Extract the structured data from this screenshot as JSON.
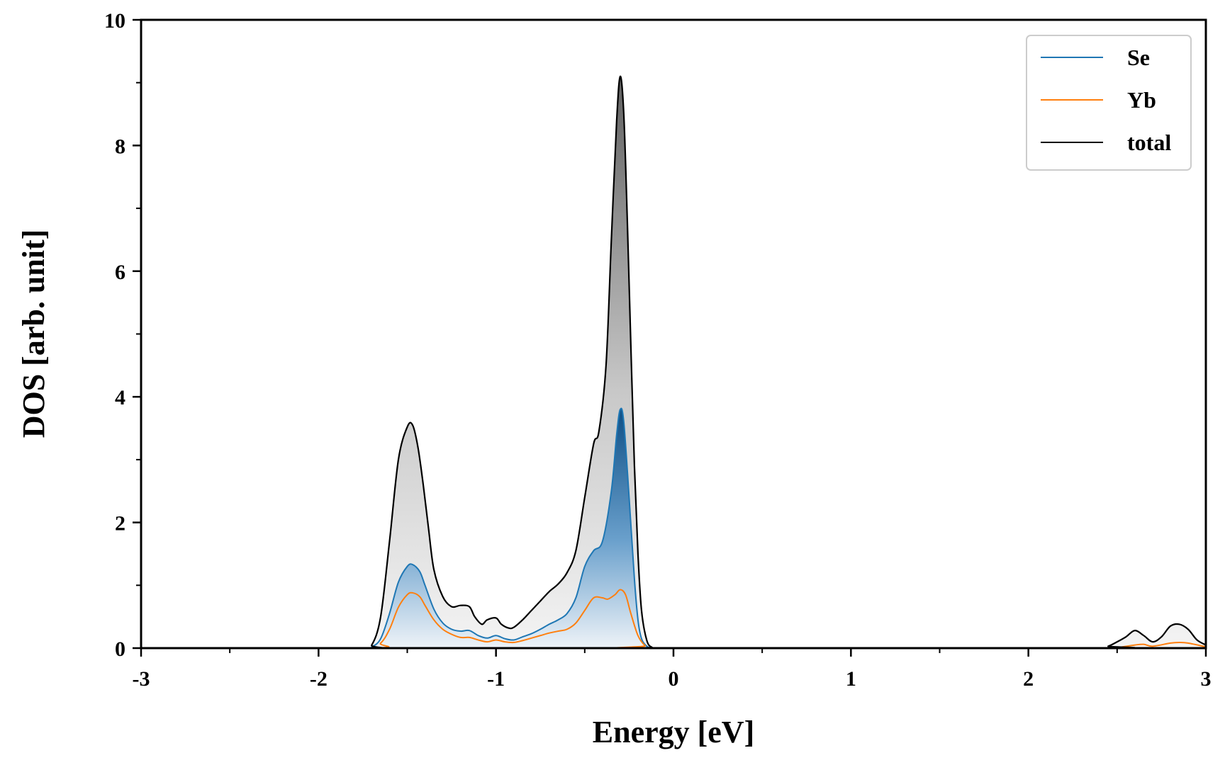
{
  "chart_data": {
    "type": "area",
    "xlabel": "Energy [eV]",
    "ylabel": "DOS [arb. unit]",
    "xlim": [
      -3,
      3
    ],
    "ylim": [
      0,
      10
    ],
    "x_ticks": [
      -3,
      -2,
      -1,
      0,
      1,
      2,
      3
    ],
    "x_tick_labels": [
      "-3",
      "-2",
      "-1",
      "0",
      "1",
      "2",
      "3"
    ],
    "y_ticks": [
      0,
      2,
      4,
      6,
      8,
      10
    ],
    "y_tick_labels": [
      "0",
      "2",
      "4",
      "6",
      "8",
      "10"
    ],
    "grid": false,
    "legend_position": "top-right",
    "series": [
      {
        "name": "Se",
        "color": "#1f77b4",
        "fill": "blue-gradient",
        "x": [
          -3.0,
          -1.75,
          -1.7,
          -1.65,
          -1.6,
          -1.55,
          -1.5,
          -1.47,
          -1.43,
          -1.4,
          -1.35,
          -1.3,
          -1.25,
          -1.2,
          -1.15,
          -1.1,
          -1.05,
          -1.0,
          -0.95,
          -0.9,
          -0.85,
          -0.8,
          -0.75,
          -0.7,
          -0.65,
          -0.6,
          -0.55,
          -0.5,
          -0.45,
          -0.4,
          -0.35,
          -0.32,
          -0.3,
          -0.28,
          -0.25,
          -0.22,
          -0.2,
          -0.18,
          -0.15,
          -0.12,
          -0.1,
          3.0
        ],
        "y": [
          0.0,
          0.0,
          0.02,
          0.15,
          0.55,
          1.05,
          1.3,
          1.33,
          1.22,
          1.0,
          0.62,
          0.4,
          0.3,
          0.27,
          0.28,
          0.2,
          0.16,
          0.2,
          0.15,
          0.13,
          0.18,
          0.23,
          0.3,
          0.38,
          0.45,
          0.55,
          0.8,
          1.3,
          1.55,
          1.7,
          2.5,
          3.4,
          3.8,
          3.6,
          2.4,
          1.1,
          0.45,
          0.15,
          0.03,
          0.0,
          0.0,
          0.0
        ]
      },
      {
        "name": "Yb",
        "color": "#ff7f0e",
        "x": [
          -3.0,
          -1.72,
          -1.65,
          -1.6,
          -1.55,
          -1.5,
          -1.47,
          -1.43,
          -1.4,
          -1.35,
          -1.3,
          -1.25,
          -1.2,
          -1.15,
          -1.1,
          -1.05,
          -1.0,
          -0.95,
          -0.9,
          -0.85,
          -0.8,
          -0.75,
          -0.7,
          -0.65,
          -0.6,
          -0.55,
          -0.5,
          -0.45,
          -0.4,
          -0.37,
          -0.33,
          -0.3,
          -0.27,
          -0.24,
          -0.2,
          -0.16,
          -0.12,
          2.4,
          2.5,
          2.6,
          2.65,
          2.7,
          2.8,
          2.85,
          2.9,
          3.0
        ],
        "y": [
          0.0,
          0.0,
          0.08,
          0.3,
          0.65,
          0.85,
          0.88,
          0.82,
          0.68,
          0.45,
          0.3,
          0.22,
          0.17,
          0.17,
          0.13,
          0.1,
          0.13,
          0.1,
          0.09,
          0.12,
          0.16,
          0.2,
          0.24,
          0.27,
          0.3,
          0.4,
          0.6,
          0.8,
          0.8,
          0.78,
          0.85,
          0.93,
          0.85,
          0.55,
          0.2,
          0.04,
          0.0,
          0.0,
          0.01,
          0.05,
          0.06,
          0.03,
          0.08,
          0.09,
          0.08,
          0.02
        ]
      },
      {
        "name": "total",
        "color": "#000000",
        "fill": "gray-gradient",
        "x": [
          -3.0,
          -1.75,
          -1.7,
          -1.65,
          -1.6,
          -1.55,
          -1.5,
          -1.47,
          -1.44,
          -1.41,
          -1.38,
          -1.35,
          -1.3,
          -1.25,
          -1.2,
          -1.15,
          -1.12,
          -1.08,
          -1.05,
          -1.0,
          -0.97,
          -0.93,
          -0.9,
          -0.85,
          -0.8,
          -0.75,
          -0.7,
          -0.65,
          -0.6,
          -0.55,
          -0.5,
          -0.45,
          -0.42,
          -0.38,
          -0.35,
          -0.32,
          -0.3,
          -0.28,
          -0.26,
          -0.24,
          -0.22,
          -0.2,
          -0.18,
          -0.15,
          -0.12,
          -0.1,
          2.4,
          2.45,
          2.5,
          2.55,
          2.6,
          2.65,
          2.7,
          2.75,
          2.8,
          2.85,
          2.9,
          2.95,
          3.0
        ],
        "y": [
          0.0,
          0.0,
          0.05,
          0.5,
          1.7,
          3.0,
          3.52,
          3.55,
          3.2,
          2.6,
          1.9,
          1.25,
          0.82,
          0.66,
          0.68,
          0.66,
          0.5,
          0.38,
          0.45,
          0.48,
          0.38,
          0.32,
          0.33,
          0.45,
          0.6,
          0.75,
          0.9,
          1.02,
          1.2,
          1.55,
          2.4,
          3.25,
          3.45,
          4.5,
          6.5,
          8.4,
          9.1,
          8.5,
          6.8,
          4.8,
          2.9,
          1.5,
          0.6,
          0.12,
          0.01,
          0.0,
          0.0,
          0.03,
          0.1,
          0.18,
          0.28,
          0.2,
          0.1,
          0.18,
          0.35,
          0.38,
          0.3,
          0.13,
          0.05
        ]
      }
    ]
  }
}
